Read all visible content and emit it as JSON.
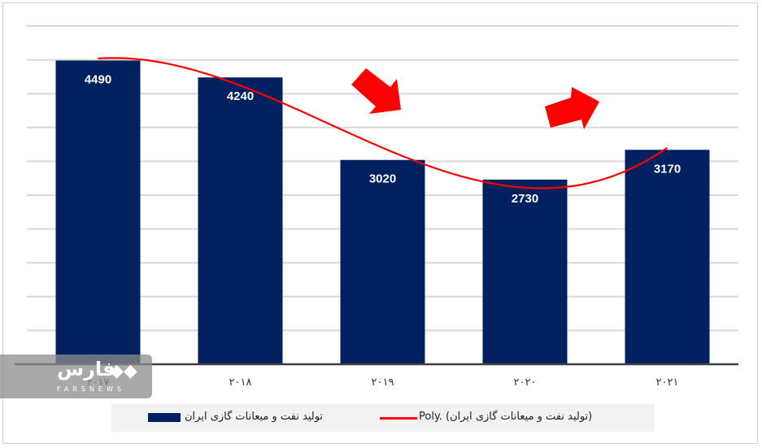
{
  "chart_data": {
    "type": "bar",
    "categories": [
      "۲۰۱۷",
      "۲۰۱۸",
      "۲۰۱۹",
      "۲۰۲۰",
      "۲۰۲۱"
    ],
    "series": [
      {
        "name": "تولید نفت و میعانات گازی ایران",
        "values": [
          4490,
          4240,
          3020,
          2730,
          3170
        ],
        "color": "#002060"
      }
    ],
    "trendline": {
      "name": "Poly. (تولید نفت و میعانات گازی ایران)",
      "type": "polynomial",
      "color": "#ff0000"
    },
    "ylim": [
      0,
      5000
    ],
    "ytick_step": 500,
    "ytick_labels_shown": false,
    "grid": true,
    "legend": "bottom",
    "annotations": [
      {
        "type": "arrow",
        "direction": "down-right",
        "color": "#ff0000"
      },
      {
        "type": "arrow",
        "direction": "up-right",
        "color": "#ff0000"
      }
    ]
  },
  "watermark": {
    "logo_text": "فارس",
    "sub": "FARSNEWS"
  }
}
